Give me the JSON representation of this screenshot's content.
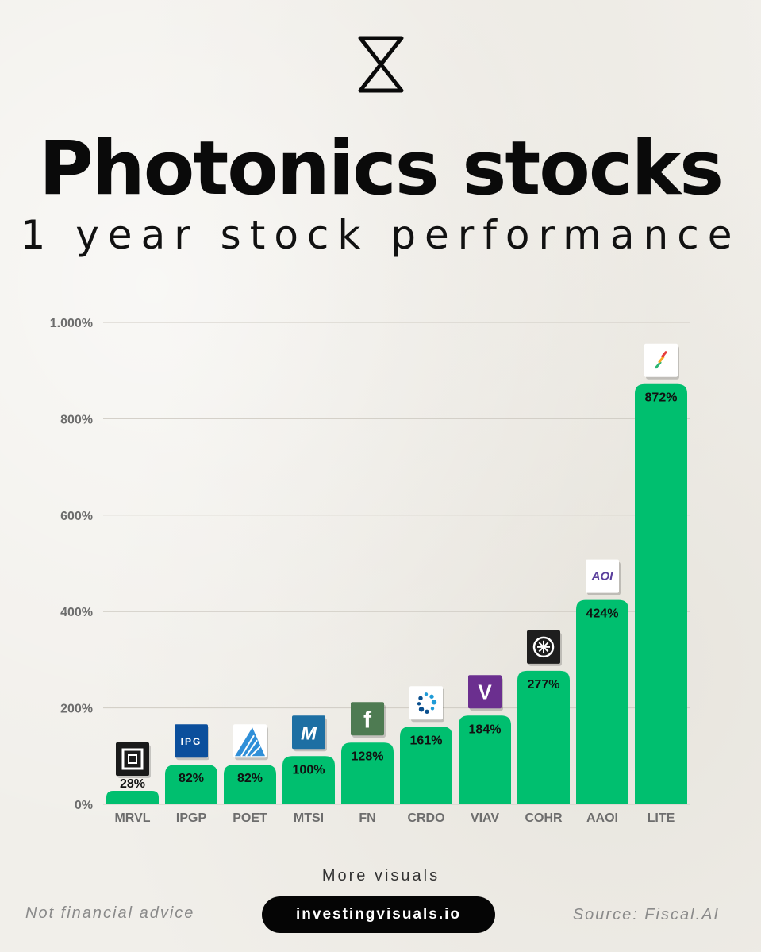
{
  "header": {
    "title": "Photonics stocks",
    "subtitle": "1 year stock performance"
  },
  "chart_data": {
    "type": "bar",
    "categories": [
      "MRVL",
      "IPGP",
      "POET",
      "MTSI",
      "FN",
      "CRDO",
      "VIAV",
      "COHR",
      "AAOI",
      "LITE"
    ],
    "values": [
      28,
      82,
      82,
      100,
      128,
      161,
      184,
      277,
      424,
      872
    ],
    "value_labels": [
      "28%",
      "82%",
      "82%",
      "100%",
      "128%",
      "161%",
      "184%",
      "277%",
      "424%",
      "872%"
    ],
    "logos": [
      "marvell-logo",
      "ipg-logo",
      "poet-logo",
      "macom-logo",
      "fabrinet-logo",
      "credo-logo",
      "viavi-logo",
      "coherent-logo",
      "aoi-logo",
      "lumentum-logo"
    ],
    "logo_texts": [
      "",
      "IPG",
      "",
      "M",
      "f",
      "",
      "V",
      "",
      "AOI",
      ""
    ],
    "y_ticks": [
      0,
      200,
      400,
      600,
      800,
      1000
    ],
    "y_tick_labels": [
      "0%",
      "200%",
      "400%",
      "600%",
      "800%",
      "1.000%"
    ],
    "ylim": [
      0,
      1000
    ],
    "grid": true,
    "bar_color": "#00bf6f"
  },
  "footer": {
    "more_visuals": "More visuals",
    "disclaimer": "Not financial advice",
    "cta_label": "investingvisuals.io",
    "source": "Source: Fiscal.AI"
  }
}
